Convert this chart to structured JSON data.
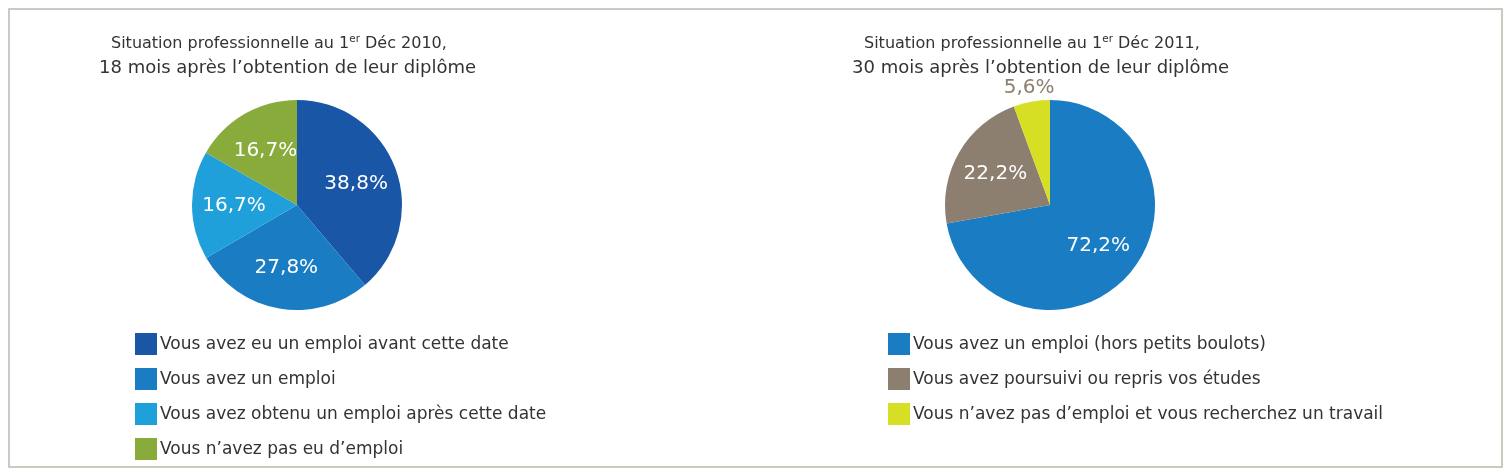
{
  "chart_data": [
    {
      "type": "pie",
      "title": "Situation professionnelle au 1$^{er}$ Déc 2010,",
      "subtitle": "18 mois après l’obtention de leur diplôme",
      "categories": [
        "Vous avez eu un emploi avant cette date",
        "Vous avez un emploi",
        "Vous avez obtenu un emploi après cette date",
        "Vous n’avez pas eu d’emploi"
      ],
      "values": [
        38.8,
        27.8,
        16.7,
        16.7
      ],
      "colors": [
        "#1a56a6",
        "#1a7cc2",
        "#1fa0da",
        "#89ab3c"
      ],
      "value_labels": [
        "38,8%",
        "27,8%",
        "16,7%",
        "16,7%"
      ],
      "legend": "bottom"
    },
    {
      "type": "pie",
      "title": "Situation professionnelle au 1$^{er}$ Déc 2011,",
      "subtitle": "30 mois après l’obtention de leur diplôme",
      "categories": [
        "Vous avez un emploi (hors petits boulots)",
        "Vous avez poursuivi ou repris vos études",
        "Vous n’avez pas d’emploi et vous recherchez un travail"
      ],
      "values": [
        72.2,
        22.2,
        5.6
      ],
      "colors": [
        "#1a7dc4",
        "#8c7f6f",
        "#d6df23"
      ],
      "value_labels": [
        "72,2%",
        "22,2%",
        "5,6%"
      ],
      "legend": "bottom"
    }
  ]
}
